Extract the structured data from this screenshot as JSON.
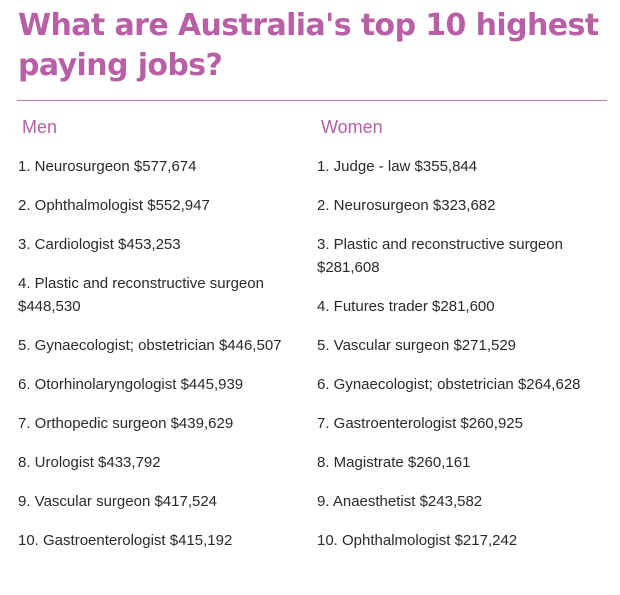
{
  "title": "What are Australia's top 10 highest paying jobs?",
  "colors": {
    "accent": "#b95fa5",
    "text": "#2a2a2a",
    "divider": "#c77bb4",
    "background": "#ffffff"
  },
  "men": {
    "heading": "Men",
    "items": [
      "1. Neurosurgeon $577,674",
      "2. Ophthalmologist $552,947",
      "3. Cardiologist $453,253",
      "4. Plastic and reconstructive surgeon $448,530",
      "5. Gynaecologist; obstetrician $446,507",
      "6. Otorhinolaryngologist $445,939",
      "7. Orthopedic surgeon $439,629",
      "8. Urologist $433,792",
      "9. Vascular surgeon $417,524",
      "10. Gastroenterologist $415,192"
    ]
  },
  "women": {
    "heading": "Women",
    "items": [
      "1. Judge - law $355,844",
      "2. Neurosurgeon $323,682",
      "3. Plastic and reconstructive surgeon $281,608",
      "4. Futures trader $281,600",
      "5. Vascular surgeon $271,529",
      "6. Gynaecologist; obstetrician $264,628",
      "7. Gastroenterologist $260,925",
      "8. Magistrate $260,161",
      "9. Anaesthetist $243,582",
      "10. Ophthalmologist $217,242"
    ]
  }
}
